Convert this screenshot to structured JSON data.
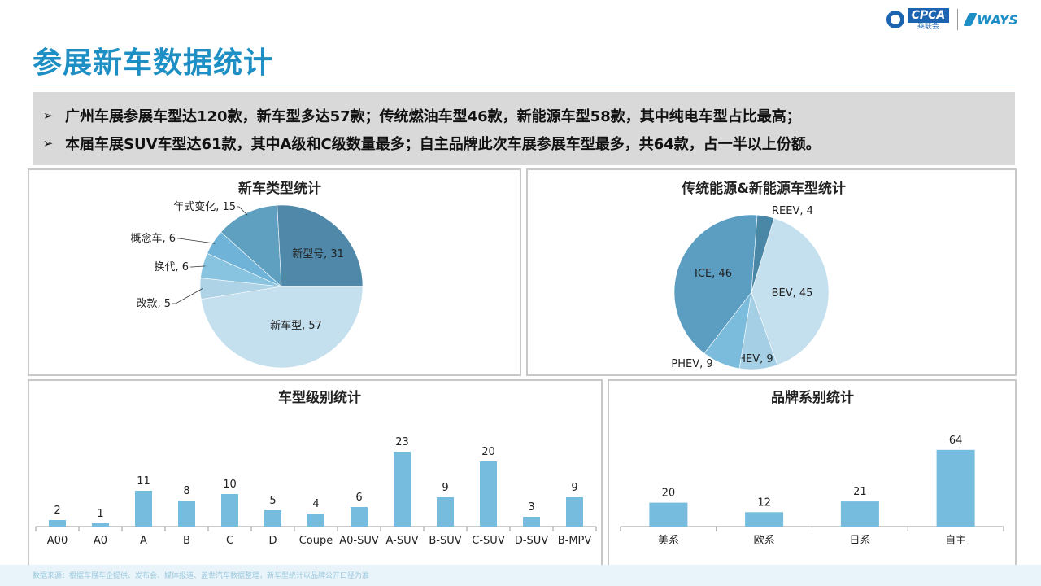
{
  "header": {
    "title": "参展新车数据统计",
    "logos": {
      "cpca": "CPCA",
      "cpca_sub": "乘联会",
      "ways": "WAYS"
    }
  },
  "summary": {
    "bullets": [
      "广州车展参展车型达120款，新车型多达57款；传统燃油车型46款，新能源车型58款，其中纯电车型占比最高；",
      "本届车展SUV车型达61款，其中A级和C级数量最多；自主品牌此次车展参展车型最多，共64款，占一半以上份额。"
    ]
  },
  "footer": {
    "note": "数据来源：根据车展车企提供、发布会、媒体报道、盖世汽车数据整理，新车型统计以品牌公开口径为准"
  },
  "chart_data": [
    {
      "type": "pie",
      "title": "新车类型统计",
      "categories": [
        "新车型",
        "改款",
        "换代",
        "概念车",
        "年式变化",
        "新型号"
      ],
      "values": [
        57,
        5,
        6,
        6,
        15,
        31
      ],
      "labels": [
        "新车型, 57",
        "改款, 5",
        "换代, 6",
        "概念车, 6",
        "年式变化, 15",
        "新型号, 31"
      ],
      "colors": [
        "#c4dfee",
        "#aed3e6",
        "#88c4df",
        "#6fb3d8",
        "#5f9fbf",
        "#4f88a8"
      ]
    },
    {
      "type": "pie",
      "title": "传统能源&新能源车型统计",
      "categories": [
        "BEV",
        "HEV",
        "PHEV",
        "ICE",
        "REEV"
      ],
      "values": [
        45,
        9,
        9,
        46,
        4
      ],
      "labels": [
        "BEV, 45",
        "HEV, 9",
        "PHEV, 9",
        "ICE, 46",
        "REEV, 4"
      ],
      "colors": [
        "#c4dfee",
        "#a4cfe5",
        "#7bbcdc",
        "#5b9ec2",
        "#4a87a6"
      ]
    },
    {
      "type": "bar",
      "title": "车型级别统计",
      "categories": [
        "A00",
        "A0",
        "A",
        "B",
        "C",
        "D",
        "Coupe",
        "A0-SUV",
        "A-SUV",
        "B-SUV",
        "C-SUV",
        "D-SUV",
        "B-MPV"
      ],
      "values": [
        2,
        1,
        11,
        8,
        10,
        5,
        4,
        6,
        23,
        9,
        20,
        3,
        9
      ],
      "ylim": [
        0,
        25
      ],
      "color": "#75bcdf"
    },
    {
      "type": "bar",
      "title": "品牌系别统计",
      "categories": [
        "美系",
        "欧系",
        "日系",
        "自主"
      ],
      "values": [
        20,
        12,
        21,
        64
      ],
      "ylim": [
        0,
        70
      ],
      "color": "#75bcdf"
    }
  ]
}
